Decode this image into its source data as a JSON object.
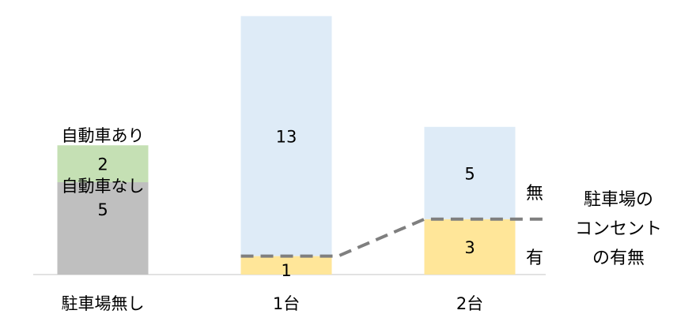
{
  "chart_data": {
    "type": "bar",
    "stacked": true,
    "categories": [
      "駐車場無し",
      "1台",
      "2台"
    ],
    "stacks": [
      {
        "category": "駐車場無し",
        "segments": [
          {
            "label": "自動車なし",
            "value": 5,
            "color": "#bfbfbf"
          },
          {
            "label": "自動車あり",
            "value": 2,
            "color": "#c5e0b4"
          }
        ]
      },
      {
        "category": "1台",
        "segments": [
          {
            "label": "有",
            "value": 1,
            "color": "#ffe699"
          },
          {
            "label": "無",
            "value": 13,
            "color": "#deebf7"
          }
        ]
      },
      {
        "category": "2台",
        "segments": [
          {
            "label": "有",
            "value": 3,
            "color": "#ffe699"
          },
          {
            "label": "無",
            "value": 5,
            "color": "#deebf7"
          }
        ]
      }
    ],
    "series_labels": {
      "present": "有",
      "absent": "無"
    },
    "annotation": [
      "駐車場の",
      "コンセント",
      "の有無"
    ],
    "ylim": [
      0,
      14
    ],
    "grid": false,
    "legend": "none",
    "divider_line": {
      "style": "dashed",
      "color": "#7f7f7f"
    }
  }
}
